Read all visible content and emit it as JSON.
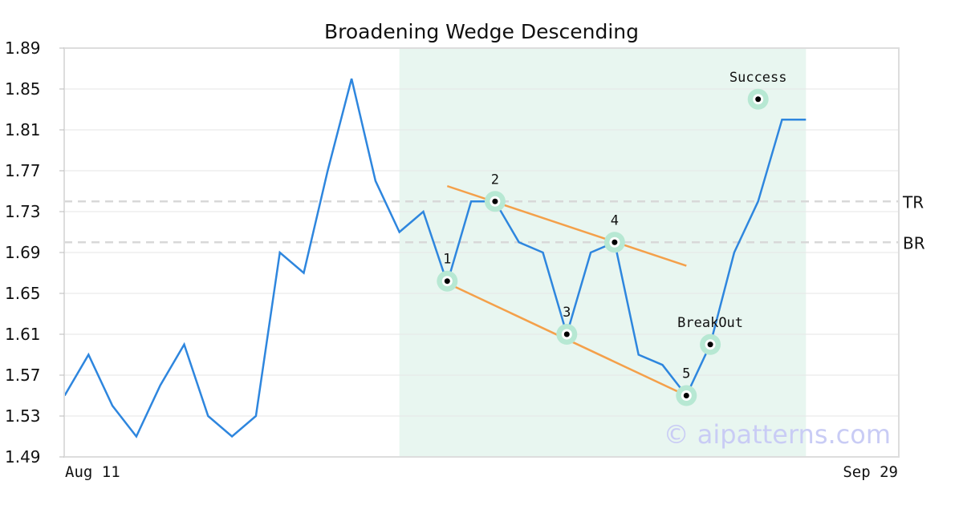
{
  "chart_data": {
    "type": "line",
    "title": "Broadening Wedge Descending",
    "xlabel": "",
    "ylabel": "",
    "x_tick_labels": [
      "Aug 11",
      "Sep 29"
    ],
    "y_ticks": [
      "1.49",
      "1.53",
      "1.57",
      "1.61",
      "1.65",
      "1.69",
      "1.73",
      "1.77",
      "1.81",
      "1.85",
      "1.89"
    ],
    "ylim": [
      1.49,
      1.89
    ],
    "grid": true,
    "series": [
      {
        "values": [
          1.55,
          1.59,
          1.54,
          1.51,
          1.56,
          1.6,
          1.53,
          1.51,
          1.53,
          1.69,
          1.67,
          1.77,
          1.86,
          1.76,
          1.71,
          1.73,
          1.66,
          1.74,
          1.74,
          1.7,
          1.69,
          1.61,
          1.69,
          1.7,
          1.59,
          1.58,
          1.55,
          1.6,
          1.69,
          1.74,
          1.82,
          1.82
        ],
        "color": "#2e86de"
      }
    ],
    "pattern_region": {
      "start_index": 14,
      "end_index": 31,
      "color": "#e8f6f0"
    },
    "reference_lines": [
      {
        "label": "TR",
        "value": 1.74
      },
      {
        "label": "BR",
        "value": 1.7
      }
    ],
    "trend_lines": [
      {
        "from": [
          16,
          1.66
        ],
        "to": [
          26,
          1.55
        ],
        "color": "#f4a04a"
      },
      {
        "from": [
          16,
          1.755
        ],
        "to": [
          26,
          1.677
        ],
        "color": "#f4a04a"
      }
    ],
    "annotations": [
      {
        "label": "1",
        "x": 16,
        "y": 1.662
      },
      {
        "label": "2",
        "x": 18,
        "y": 1.74
      },
      {
        "label": "3",
        "x": 21,
        "y": 1.61
      },
      {
        "label": "4",
        "x": 23,
        "y": 1.7
      },
      {
        "label": "5",
        "x": 26,
        "y": 1.55
      },
      {
        "label": "BreakOut",
        "x": 27,
        "y": 1.6
      },
      {
        "label": "Success",
        "x": 29,
        "y": 1.84
      }
    ],
    "watermark": "© aipatterns.com"
  }
}
